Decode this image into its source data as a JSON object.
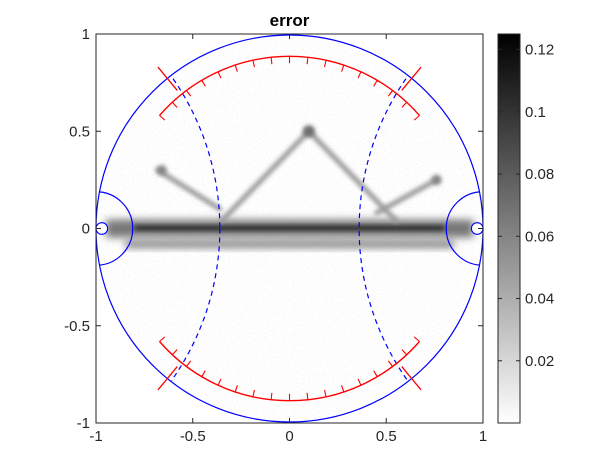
{
  "chart_data": {
    "type": "heatmap",
    "title": "error",
    "xlabel": "",
    "ylabel": "",
    "xlim": [
      -1,
      1
    ],
    "ylim": [
      -1,
      1
    ],
    "x_ticks": [
      -1,
      -0.5,
      0,
      0.5,
      1
    ],
    "x_tick_labels": [
      "-1",
      "-0.5",
      "0",
      "0.5",
      "1"
    ],
    "y_ticks": [
      1,
      0.5,
      0,
      -0.5,
      -1
    ],
    "y_tick_labels": [
      "1",
      "0.5",
      "0",
      "-0.5",
      "-1"
    ],
    "colormap": "gray-reversed",
    "clim": [
      0,
      0.125
    ],
    "colorbar_ticks": [
      0.12,
      0.1,
      0.08,
      0.06,
      0.04,
      0.02
    ],
    "colorbar_tick_labels": [
      "0.12",
      "0.1",
      "0.08",
      "0.06",
      "0.04",
      "0.02"
    ],
    "grid": false,
    "colors": {
      "circle": "#0000ff",
      "arcs": "#ff0000",
      "axes": "#262626"
    },
    "overlays": {
      "outer_circle": {
        "center": [
          0,
          0
        ],
        "radius": 1,
        "style": "solid"
      },
      "dashed_arcs": [
        {
          "center": [
            -1.72,
            0
          ],
          "radius": 1.36,
          "x_at_y0": -0.36,
          "style": "dashed"
        },
        {
          "center": [
            1.72,
            0
          ],
          "radius": 1.36,
          "x_at_y0": 0.36,
          "style": "dashed"
        }
      ],
      "side_semicircles": [
        {
          "center": [
            -1,
            0
          ],
          "radius": 0.19
        },
        {
          "center": [
            1,
            0
          ],
          "radius": 0.19
        }
      ],
      "side_small_circles": [
        {
          "center": [
            -0.97,
            0
          ],
          "radius": 0.03
        },
        {
          "center": [
            0.97,
            0
          ],
          "radius": 0.03
        }
      ],
      "red_arcs": [
        {
          "center": [
            0,
            0
          ],
          "radius": 0.89,
          "from_deg": 41,
          "to_deg": 139,
          "ticks": 17
        },
        {
          "center": [
            0,
            0
          ],
          "radius": 0.89,
          "from_deg": 221,
          "to_deg": 319,
          "ticks": 17
        }
      ],
      "red_diagonals": [
        {
          "from": [
            -0.58,
            0.71
          ],
          "to": [
            -0.68,
            0.83
          ]
        },
        {
          "from": [
            0.58,
            0.71
          ],
          "to": [
            0.68,
            0.83
          ]
        },
        {
          "from": [
            -0.58,
            -0.71
          ],
          "to": [
            -0.68,
            -0.83
          ]
        },
        {
          "from": [
            0.58,
            -0.71
          ],
          "to": [
            0.68,
            -0.83
          ]
        }
      ]
    },
    "error_features": {
      "horizontal_band": {
        "y": 0,
        "x_range": [
          -0.95,
          0.95
        ],
        "peak": 0.12
      },
      "lower_band": {
        "y": -0.08,
        "x_range": [
          -0.85,
          0.85
        ],
        "peak": 0.06
      },
      "peak_point": {
        "x": 0.1,
        "y": 0.5,
        "value": 0.07
      },
      "streaks": [
        {
          "from": [
            0.1,
            0.5
          ],
          "to": [
            -0.35,
            0.04
          ],
          "value": 0.05
        },
        {
          "from": [
            0.1,
            0.5
          ],
          "to": [
            0.55,
            0.04
          ],
          "value": 0.05
        },
        {
          "from": [
            -0.68,
            0.3
          ],
          "to": [
            -0.36,
            0.1
          ],
          "value": 0.05
        },
        {
          "from": [
            0.76,
            0.25
          ],
          "to": [
            0.45,
            0.08
          ],
          "value": 0.05
        }
      ],
      "side_spots": [
        {
          "x": -0.66,
          "y": 0.3,
          "value": 0.06
        },
        {
          "x": 0.76,
          "y": 0.25,
          "value": 0.06
        }
      ]
    }
  }
}
